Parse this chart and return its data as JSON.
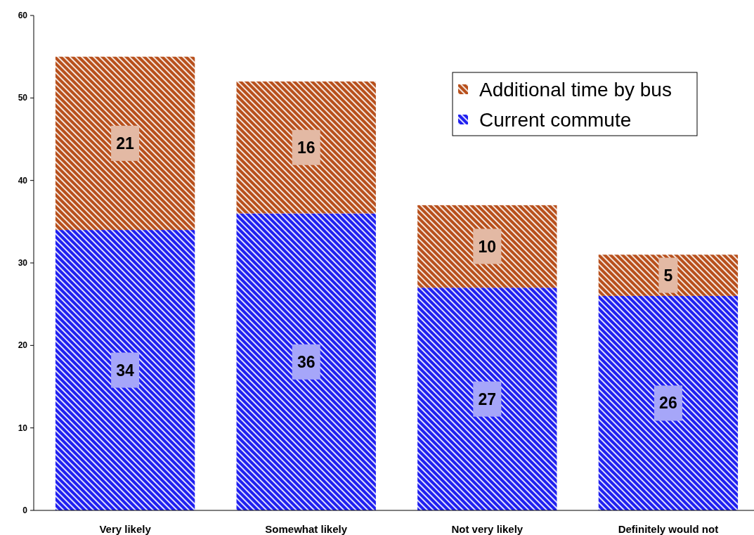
{
  "chart_data": {
    "type": "bar",
    "stacked": true,
    "categories": [
      "Very likely",
      "Somewhat likely",
      "Not very likely",
      "Definitely would not"
    ],
    "series": [
      {
        "name": "Current commute",
        "color": "#2020f0",
        "values": [
          34,
          36,
          27,
          26
        ]
      },
      {
        "name": "Additional time by bus",
        "color": "#b8501c",
        "values": [
          21,
          16,
          10,
          5
        ]
      }
    ],
    "ylim": [
      0,
      60
    ],
    "yticks": [
      0,
      10,
      20,
      30,
      40,
      50,
      60
    ],
    "grid": false,
    "legend": "top right",
    "data_labels": true
  }
}
